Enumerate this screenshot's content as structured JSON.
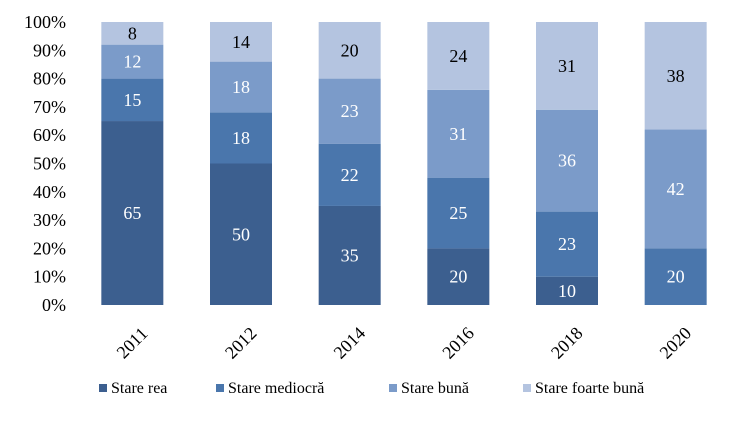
{
  "chart_data": {
    "type": "stacked-bar-100",
    "title": "",
    "xlabel": "",
    "ylabel": "",
    "categories": [
      "2011",
      "2012",
      "2014",
      "2016",
      "2018",
      "2020"
    ],
    "y_ticks": [
      "0%",
      "10%",
      "20%",
      "30%",
      "40%",
      "50%",
      "60%",
      "70%",
      "80%",
      "90%",
      "100%"
    ],
    "ylim": [
      0,
      100
    ],
    "grid": false,
    "legend_position": "bottom",
    "series": [
      {
        "name": "Stare rea",
        "color": "#3c5f8f",
        "label_color": "#ffffff",
        "values": [
          65,
          50,
          35,
          20,
          10,
          0
        ]
      },
      {
        "name": "Stare mediocră",
        "color": "#4a76ac",
        "label_color": "#ffffff",
        "values": [
          15,
          18,
          22,
          25,
          23,
          20
        ]
      },
      {
        "name": "Stare bună",
        "color": "#7b9bc9",
        "label_color": "#ffffff",
        "values": [
          12,
          18,
          23,
          31,
          36,
          42
        ]
      },
      {
        "name": "Stare foarte bună",
        "color": "#b4c4e0",
        "label_color": "#000000",
        "values": [
          8,
          14,
          20,
          24,
          31,
          38
        ]
      }
    ]
  }
}
